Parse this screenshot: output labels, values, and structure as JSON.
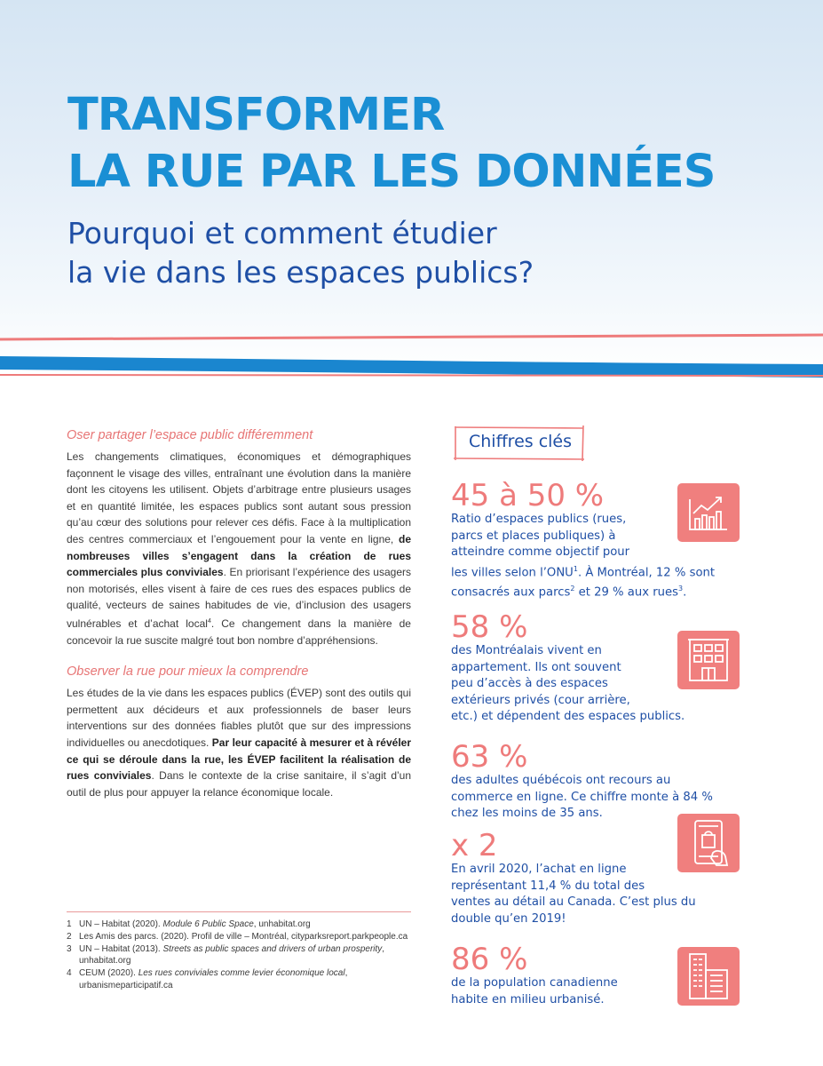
{
  "header": {
    "title_line1": "TRANSFORMER",
    "title_line2": "LA RUE PAR LES DONNÉES",
    "subtitle_line1": "Pourquoi et comment étudier",
    "subtitle_line2": "la vie dans les espaces publics?"
  },
  "colors": {
    "title_blue": "#1a8fd4",
    "navy": "#1f4fa5",
    "coral": "#ee7b7b",
    "stripe_blue": "#1a86cf"
  },
  "section1": {
    "heading": "Oser partager l’espace public différemment",
    "p1": "Les changements climatiques, économiques et démographiques façonnent le visage des villes, entraînant une évolution dans la manière dont les citoyens les utilisent. Objets d’arbitrage entre plusieurs usages et en quantité limitée, les espaces publics sont autant sous pression qu’au cœur des solutions pour relever ces défis. Face à la multiplication des centres commerciaux et l’engouement pour la vente en ligne, ",
    "p1_bold": "de nombreuses villes s’engagent dans la création de rues commerciales plus conviviales",
    "p1_rest": ". En priorisant l’expérience des usagers non motorisés, elles visent à faire de ces rues des espaces publics de qualité, vecteurs de saines habitudes de vie, d’inclusion des usagers vulnérables et d’achat local",
    "p1_sup": "4",
    "p1_end": ". Ce changement dans la manière de concevoir la rue suscite malgré tout bon nombre d’appréhensions."
  },
  "section2": {
    "heading": "Observer la rue pour mieux la comprendre",
    "p1": "Les études de la vie dans les espaces publics (ÉVEP) sont des outils qui permettent aux décideurs et aux professionnels de baser leurs interventions sur des données fiables plutôt que sur des impressions individuelles ou anecdotiques. ",
    "p1_bold": "Par leur capacité à mesurer et à révéler ce qui se déroule dans la rue, les ÉVEP facilitent la réalisation de rues conviviales",
    "p1_rest": ". Dans le contexte de la crise sanitaire, il s’agit d’un outil de plus pour appuyer la relance économique locale."
  },
  "footnotes": [
    {
      "n": "1",
      "text": "UN – Habitat (2020). ",
      "italic": "Module 6 Public Space",
      "rest": ", unhabitat.org"
    },
    {
      "n": "2",
      "text": "Les Amis des parcs. (2020). Profil de ville – Montréal, cityparksreport.parkpeople.ca",
      "italic": "",
      "rest": ""
    },
    {
      "n": "3",
      "text": "UN – Habitat (2013). ",
      "italic": "Streets as public spaces and drivers of urban prosperity",
      "rest": ", unhabitat.org"
    },
    {
      "n": "4",
      "text": "CEUM (2020). ",
      "italic": "Les rues conviviales comme levier économique local",
      "rest": ", urbanismeparticipatif.ca"
    }
  ],
  "key_figures": {
    "title": "Chiffres clés",
    "stats": [
      {
        "value": "45 à 50 %",
        "icon": "growth-chart-icon",
        "desc_a": "Ratio d’espaces publics (rues,",
        "desc_b": "parcs et places publiques) à",
        "desc_c": "atteindre comme objectif pour",
        "desc_d1": "les villes selon l’ONU",
        "sup1": "1",
        "desc_d2": ". À Montréal, 12 % sont",
        "desc_e1": "consacrés aux parcs",
        "sup2": "2",
        "desc_e2": " et 29 % aux rues",
        "sup3": "3",
        "desc_e3": "."
      },
      {
        "value": "58 %",
        "icon": "apartment-building-icon",
        "lines": [
          "des Montréalais vivent en",
          "appartement. Ils ont souvent",
          "peu d’accès à des espaces",
          "extérieurs privés (cour arrière,",
          "etc.) et dépendent des espaces publics."
        ]
      },
      {
        "value": "63 %",
        "lines": [
          "des adultes québécois ont recours au",
          "commerce en ligne. Ce chiffre monte à 84 %",
          "chez les moins de 35 ans."
        ]
      },
      {
        "value": "x 2",
        "icon": "online-shopping-icon",
        "lines": [
          "En avril 2020, l’achat en ligne",
          "représentant 11,4 % du total des",
          "ventes au détail au Canada. C’est plus du",
          "double qu’en 2019!"
        ]
      },
      {
        "value": "86 %",
        "icon": "city-buildings-icon",
        "lines": [
          "de la population canadienne",
          "habite en milieu urbanisé."
        ]
      }
    ]
  }
}
